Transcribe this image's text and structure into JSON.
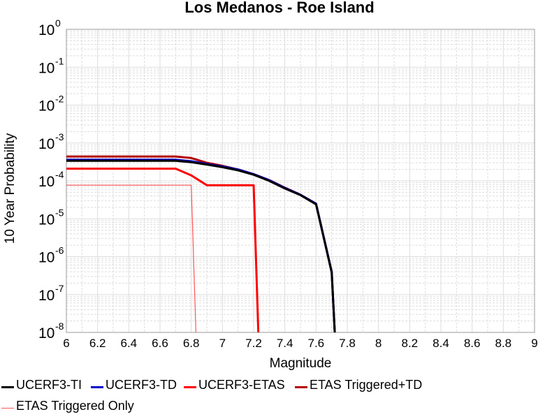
{
  "chart_data": {
    "type": "line",
    "title": "Los Medanos - Roe Island",
    "xlabel": "Magnitude",
    "ylabel": "10 Year Probability",
    "xlim": [
      6,
      9
    ],
    "ylim": [
      1e-08,
      1
    ],
    "yscale": "log",
    "grid": true,
    "legend_position": "bottom",
    "x_ticks": [
      "6",
      "6.2",
      "6.4",
      "6.6",
      "6.8",
      "7",
      "7.2",
      "7.4",
      "7.6",
      "7.8",
      "8",
      "8.2",
      "8.4",
      "8.6",
      "8.8",
      "9"
    ],
    "y_ticks": [
      {
        "base": "10",
        "exp": "0",
        "value": 1
      },
      {
        "base": "10",
        "exp": "-1",
        "value": 0.1
      },
      {
        "base": "10",
        "exp": "-2",
        "value": 0.01
      },
      {
        "base": "10",
        "exp": "-3",
        "value": 0.001
      },
      {
        "base": "10",
        "exp": "-4",
        "value": 0.0001
      },
      {
        "base": "10",
        "exp": "-5",
        "value": 1e-05
      },
      {
        "base": "10",
        "exp": "-6",
        "value": 1e-06
      },
      {
        "base": "10",
        "exp": "-7",
        "value": 1e-07
      },
      {
        "base": "10",
        "exp": "-8",
        "value": 1e-08
      }
    ],
    "series": [
      {
        "name": "UCERF3-TI",
        "color": "#000000",
        "x": [
          6.0,
          6.7,
          6.8,
          6.9,
          7.0,
          7.1,
          7.2,
          7.3,
          7.4,
          7.5,
          7.6,
          7.7,
          7.72
        ],
        "y": [
          0.00034,
          0.00034,
          0.00031,
          0.00027,
          0.00023,
          0.00019,
          0.000145,
          0.0001,
          6.3e-05,
          4.2e-05,
          2.4e-05,
          3.8e-07,
          1e-08
        ]
      },
      {
        "name": "UCERF3-TD",
        "color": "#0000cc",
        "x": [
          6.0,
          6.7,
          6.8,
          6.9,
          7.0,
          7.1,
          7.2,
          7.3,
          7.4,
          7.5,
          7.6,
          7.7,
          7.72
        ],
        "y": [
          0.00036,
          0.00036,
          0.00033,
          0.00028,
          0.00024,
          0.0002,
          0.00015,
          0.000104,
          6.5e-05,
          4.3e-05,
          2.5e-05,
          4e-07,
          1e-08
        ]
      },
      {
        "name": "UCERF3-ETAS",
        "color": "#ff0000",
        "x": [
          6.0,
          6.7,
          6.8,
          6.9,
          7.0,
          7.1,
          7.2,
          7.23
        ],
        "y": [
          0.00021,
          0.00021,
          0.00014,
          7.7e-05,
          7.7e-05,
          7.7e-05,
          7.7e-05,
          1e-08
        ]
      },
      {
        "name": "ETAS Triggered+TD",
        "color": "#b30000",
        "x": [
          6.0,
          6.7,
          6.8,
          6.9,
          7.0,
          7.1,
          7.2,
          7.3,
          7.4,
          7.5,
          7.6,
          7.7,
          7.72
        ],
        "y": [
          0.00044,
          0.00044,
          0.0004,
          0.0003,
          0.00025,
          0.0002,
          0.00015,
          0.000105,
          6.6e-05,
          4.3e-05,
          2.5e-05,
          4e-07,
          1e-08
        ]
      },
      {
        "name": "ETAS Triggered Only",
        "color": "#ff5555",
        "x": [
          6.0,
          6.8,
          6.83
        ],
        "y": [
          7.7e-05,
          7.7e-05,
          1e-08
        ]
      }
    ]
  }
}
